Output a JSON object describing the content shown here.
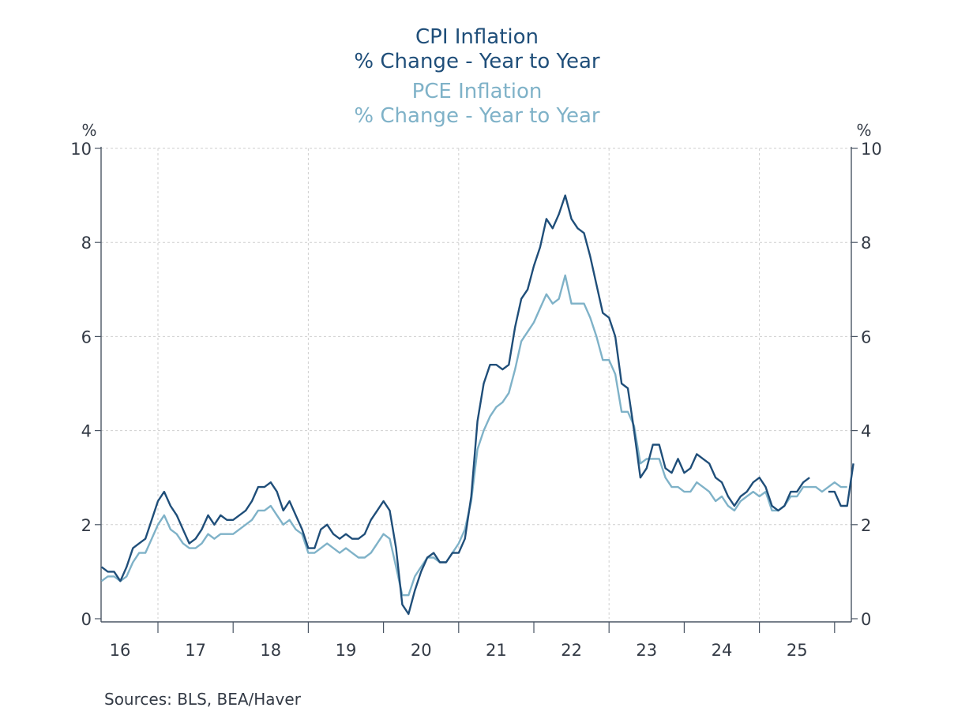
{
  "titles": {
    "cpi_title": "CPI Inflation",
    "cpi_subtitle": "% Change - Year to Year",
    "pce_title": "PCE Inflation",
    "pce_subtitle": "% Change - Year to Year"
  },
  "source": "Sources:  BLS, BEA/Haver",
  "colors": {
    "cpi": "#1f4e79",
    "pce": "#7fb2c8",
    "axis": "#4a5564",
    "grid": "#cfcfcf"
  },
  "chart_data": {
    "type": "line",
    "title": "CPI Inflation % Change - Year to Year; PCE Inflation % Change - Year to Year",
    "xlabel": "",
    "ylabel_left": "%",
    "ylabel_right": "%",
    "ylim": [
      0,
      10
    ],
    "yticks": [
      0,
      2,
      4,
      6,
      8,
      10
    ],
    "ytick_labels": [
      "0",
      "2",
      "4",
      "6",
      "8",
      "10"
    ],
    "xtick_labels": [
      "16",
      "17",
      "18",
      "19",
      "20",
      "21",
      "22",
      "23",
      "24",
      "25"
    ],
    "x_start": "2016-04",
    "x_frequency": "monthly",
    "grid": true,
    "series": [
      {
        "name": "CPI Inflation % Change - Year to Year",
        "values": [
          1.1,
          1.0,
          1.0,
          0.8,
          1.1,
          1.5,
          1.6,
          1.7,
          2.1,
          2.5,
          2.7,
          2.4,
          2.2,
          1.9,
          1.6,
          1.7,
          1.9,
          2.2,
          2.0,
          2.2,
          2.1,
          2.1,
          2.2,
          2.3,
          2.5,
          2.8,
          2.8,
          2.9,
          2.7,
          2.3,
          2.5,
          2.2,
          1.9,
          1.5,
          1.5,
          1.9,
          2.0,
          1.8,
          1.7,
          1.8,
          1.7,
          1.7,
          1.8,
          2.1,
          2.3,
          2.5,
          2.3,
          1.5,
          0.3,
          0.1,
          0.6,
          1.0,
          1.3,
          1.4,
          1.2,
          1.2,
          1.4,
          1.4,
          1.7,
          2.6,
          4.2,
          5.0,
          5.4,
          5.4,
          5.3,
          5.4,
          6.2,
          6.8,
          7.0,
          7.5,
          7.9,
          8.5,
          8.3,
          8.6,
          9.0,
          8.5,
          8.3,
          8.2,
          7.7,
          7.1,
          6.5,
          6.4,
          6.0,
          5.0,
          4.9,
          4.0,
          3.0,
          3.2,
          3.7,
          3.7,
          3.2,
          3.1,
          3.4,
          3.1,
          3.2,
          3.5,
          3.4,
          3.3,
          3.0,
          2.9,
          2.6,
          2.4,
          2.6,
          2.7,
          2.9,
          3.0,
          2.8,
          2.4,
          2.3,
          2.4,
          2.7,
          2.7,
          2.9,
          3.0,
          null,
          null,
          2.7,
          2.7,
          2.4,
          2.4,
          3.3
        ],
        "color": "#1f4e79"
      },
      {
        "name": "PCE Inflation % Change - Year to Year",
        "values": [
          0.8,
          0.9,
          0.9,
          0.8,
          0.9,
          1.2,
          1.4,
          1.4,
          1.7,
          2.0,
          2.2,
          1.9,
          1.8,
          1.6,
          1.5,
          1.5,
          1.6,
          1.8,
          1.7,
          1.8,
          1.8,
          1.8,
          1.9,
          2.0,
          2.1,
          2.3,
          2.3,
          2.4,
          2.2,
          2.0,
          2.1,
          1.9,
          1.8,
          1.4,
          1.4,
          1.5,
          1.6,
          1.5,
          1.4,
          1.5,
          1.4,
          1.3,
          1.3,
          1.4,
          1.6,
          1.8,
          1.7,
          1.1,
          0.5,
          0.5,
          0.9,
          1.1,
          1.3,
          1.3,
          1.2,
          1.2,
          1.4,
          1.6,
          1.9,
          2.5,
          3.6,
          4.0,
          4.3,
          4.5,
          4.6,
          4.8,
          5.3,
          5.9,
          6.1,
          6.3,
          6.6,
          6.9,
          6.7,
          6.8,
          7.3,
          6.7,
          6.7,
          6.7,
          6.4,
          6.0,
          5.5,
          5.5,
          5.2,
          4.4,
          4.4,
          4.1,
          3.3,
          3.4,
          3.4,
          3.4,
          3.0,
          2.8,
          2.8,
          2.7,
          2.7,
          2.9,
          2.8,
          2.7,
          2.5,
          2.6,
          2.4,
          2.3,
          2.5,
          2.6,
          2.7,
          2.6,
          2.7,
          2.3,
          2.3,
          2.4,
          2.6,
          2.6,
          2.8,
          2.8,
          2.8,
          2.7,
          2.8,
          2.9,
          2.8,
          2.8,
          null
        ],
        "color": "#7fb2c8"
      }
    ]
  }
}
